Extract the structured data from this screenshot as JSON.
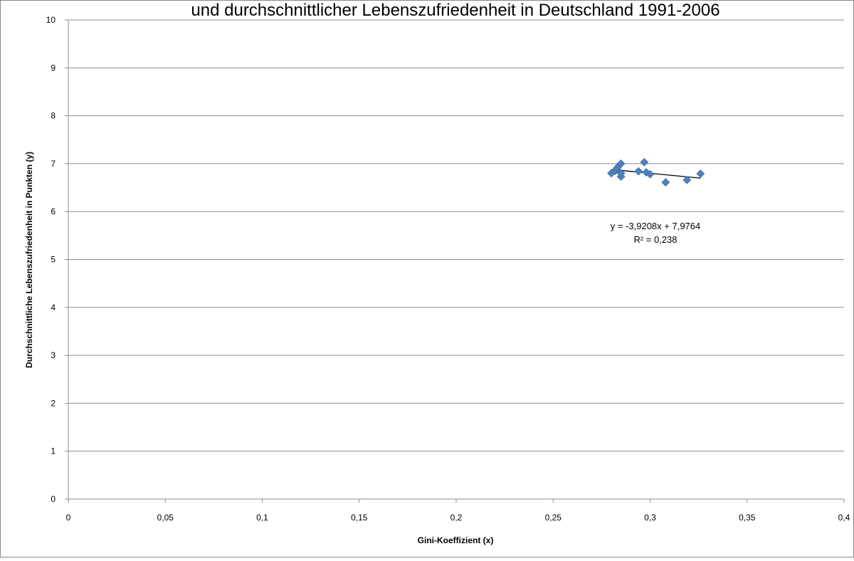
{
  "chart_data": {
    "type": "scatter",
    "title": "und durchschnittlicher Lebenszufriedenheit in Deutschland 1991-2006",
    "xlabel": "Gini-Koeffizient  (x)",
    "ylabel": "Durchschnittliche  Lebenszufriedenheit in Punkten (y)",
    "xlim": [
      0,
      0.4
    ],
    "ylim": [
      0,
      10
    ],
    "x_ticks": [
      0,
      0.05,
      0.1,
      0.15,
      0.2,
      0.25,
      0.3,
      0.35,
      0.4
    ],
    "x_tick_labels": [
      "0",
      "0,05",
      "0,1",
      "0,15",
      "0,2",
      "0,25",
      "0,3",
      "0,35",
      "0,4"
    ],
    "y_ticks": [
      0,
      1,
      2,
      3,
      4,
      5,
      6,
      7,
      8,
      9,
      10
    ],
    "y_tick_labels": [
      "0",
      "1",
      "2",
      "3",
      "4",
      "5",
      "6",
      "7",
      "8",
      "9",
      "10"
    ],
    "grid": "horizontal",
    "series": [
      {
        "marker": "diamond",
        "color": "#4f81bd",
        "points": [
          {
            "x": 0.28,
            "y": 6.8
          },
          {
            "x": 0.282,
            "y": 6.85
          },
          {
            "x": 0.283,
            "y": 6.91
          },
          {
            "x": 0.284,
            "y": 6.96
          },
          {
            "x": 0.285,
            "y": 7.0
          },
          {
            "x": 0.285,
            "y": 6.73
          },
          {
            "x": 0.285,
            "y": 6.8
          },
          {
            "x": 0.294,
            "y": 6.84
          },
          {
            "x": 0.297,
            "y": 7.03
          },
          {
            "x": 0.298,
            "y": 6.82
          },
          {
            "x": 0.3,
            "y": 6.78
          },
          {
            "x": 0.308,
            "y": 6.61
          },
          {
            "x": 0.319,
            "y": 6.66
          },
          {
            "x": 0.326,
            "y": 6.79
          }
        ]
      }
    ],
    "trendline": {
      "slope": -3.9208,
      "intercept": 7.9764,
      "x_range": [
        0.28,
        0.326
      ],
      "color": "#000000",
      "equation_label": "y = -3,9208x + 7,9764",
      "r2_label": "R² = 0,238"
    }
  }
}
